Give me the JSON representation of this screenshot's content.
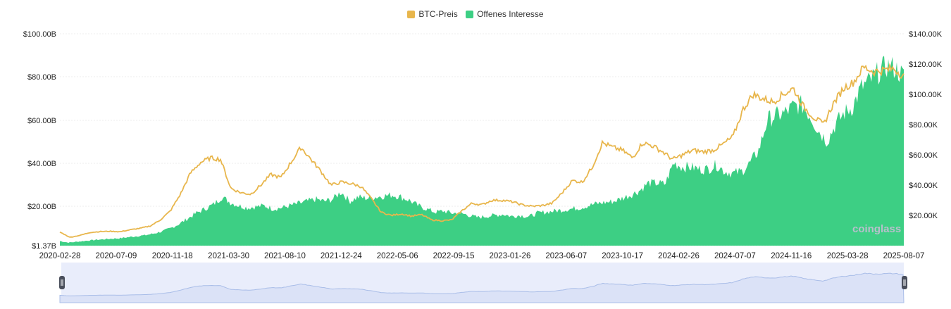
{
  "legend": {
    "price_label": "BTC-Preis",
    "oi_label": "Offenes Interesse"
  },
  "watermark": "coinglass",
  "colors": {
    "price": "#e8b64c",
    "open_interest": "#3dcf84",
    "grid": "#ececec",
    "navigator_fill": "#dbe2f7",
    "navigator_line": "#a9bde8",
    "handle": "#4a4f5c"
  },
  "chart_data": {
    "type": "line+area",
    "x_ticks": [
      "2020-02-28",
      "2020-07-09",
      "2020-11-18",
      "2021-03-30",
      "2021-08-10",
      "2021-12-24",
      "2022-05-06",
      "2022-09-15",
      "2023-01-26",
      "2023-06-07",
      "2023-10-17",
      "2024-02-26",
      "2024-07-07",
      "2024-11-16",
      "2025-03-28",
      "2025-08-07"
    ],
    "y_left_ticks": [
      "$100.00B",
      "$80.00B",
      "$60.00B",
      "$40.00B",
      "$20.00B",
      "$1.37B"
    ],
    "y_right_ticks": [
      "$140.00K",
      "$120.00K",
      "$100.00K",
      "$80.00K",
      "$60.00K",
      "$40.00K",
      "$20.00K"
    ],
    "y_left_range": [
      1.37,
      100
    ],
    "y_right_range": [
      0,
      140000
    ],
    "series": [
      {
        "name": "Offenes Interesse",
        "axis": "left",
        "unit": "B USD",
        "values": [
          3.5,
          2.8,
          3.2,
          3.6,
          4.0,
          4.3,
          4.6,
          4.8,
          5.3,
          5.8,
          6.2,
          7.0,
          8.0,
          9.5,
          11.5,
          14.0,
          16.5,
          18.5,
          20.5,
          24.0,
          21.5,
          20.0,
          19.0,
          19.5,
          20.0,
          18.5,
          19.0,
          20.0,
          21.0,
          22.0,
          23.0,
          22.0,
          23.0,
          26.5,
          22.0,
          24.0,
          23.5,
          24.0,
          24.5,
          25.0,
          24.0,
          22.5,
          20.0,
          18.5,
          17.0,
          17.5,
          16.5,
          16.5,
          15.5,
          14.5,
          15.0,
          15.5,
          16.0,
          15.0,
          15.5,
          14.8,
          16.5,
          17.0,
          17.5,
          18.0,
          18.5,
          19.0,
          20.0,
          21.0,
          21.5,
          22.0,
          23.5,
          25.0,
          27.0,
          30.5,
          30.5,
          30.0,
          40.0,
          38.0,
          38.0,
          37.0,
          37.0,
          39.0,
          36.0,
          35.0,
          36.0,
          40.0,
          46.0,
          60.0,
          62.0,
          63.0,
          66.0,
          67.0,
          62.0,
          55.0,
          50.0,
          58.0,
          63.0,
          66.0,
          75.0,
          78.0,
          82.0,
          85.0,
          84.0,
          80.0
        ]
      },
      {
        "name": "BTC-Preis",
        "axis": "right",
        "unit": "USD",
        "values": [
          9000,
          5500,
          6800,
          8700,
          9300,
          9500,
          9200,
          10500,
          11500,
          13000,
          17000,
          23000,
          34000,
          48000,
          55000,
          58000,
          57000,
          38000,
          35000,
          34000,
          40000,
          47000,
          45000,
          55000,
          65000,
          57000,
          49000,
          40000,
          42000,
          41000,
          39000,
          31000,
          22000,
          20000,
          21000,
          19500,
          20500,
          17000,
          16500,
          17000,
          23000,
          28000,
          27000,
          30000,
          30000,
          29000,
          27000,
          26000,
          26500,
          28000,
          35000,
          43000,
          42000,
          52000,
          68000,
          65000,
          63000,
          58000,
          68000,
          66000,
          62000,
          57000,
          60000,
          63000,
          62000,
          63000,
          67000,
          72000,
          90000,
          100000,
          97000,
          95000,
          100000,
          104000,
          92000,
          85000,
          80000,
          94000,
          104000,
          108000,
          118000,
          115000,
          116000,
          117000,
          112000
        ]
      }
    ]
  }
}
